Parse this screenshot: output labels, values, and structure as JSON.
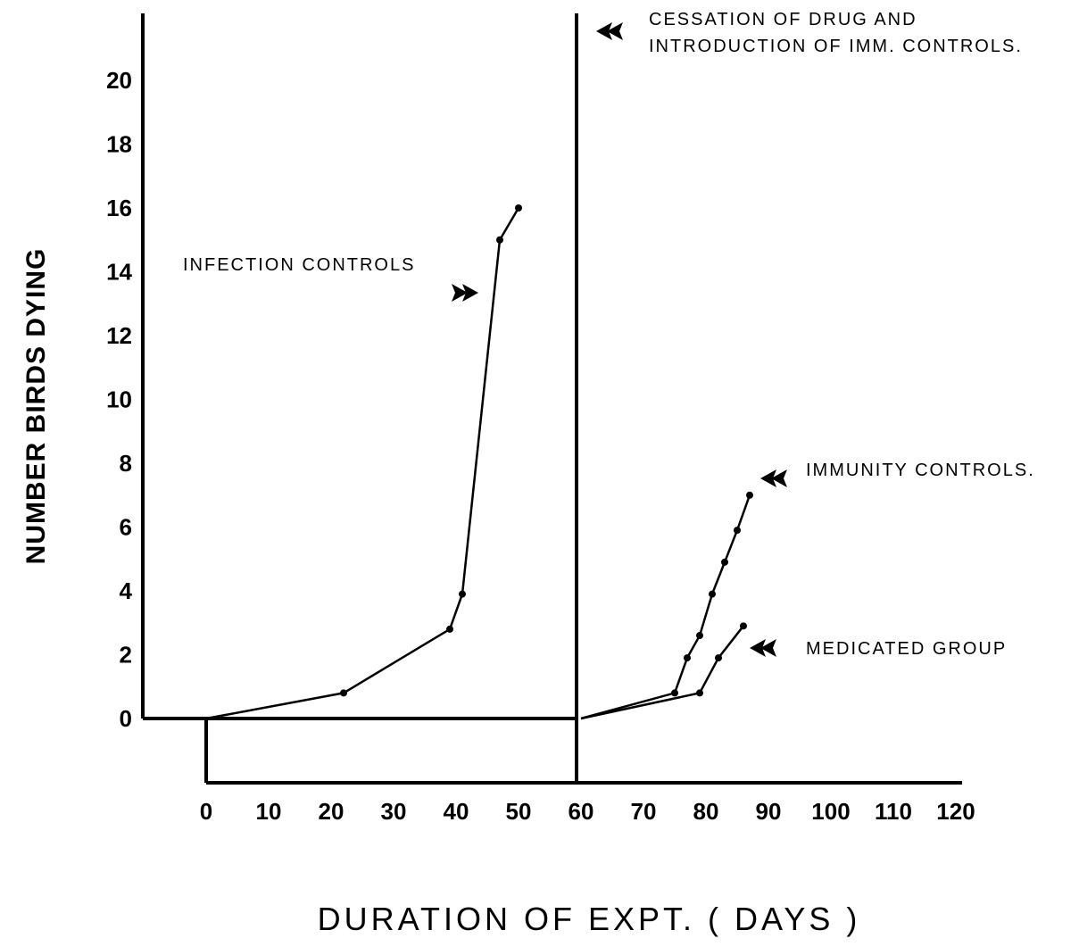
{
  "chart_data": {
    "type": "line",
    "title": "",
    "xlabel": "DURATION  OF  EXPT.  ( DAYS )",
    "ylabel": "NUMBER     BIRDS     DYING",
    "xlim": [
      0,
      120
    ],
    "ylim": [
      0,
      20
    ],
    "x_ticks": [
      "0",
      "10",
      "20",
      "30",
      "40",
      "50",
      "60",
      "70",
      "80",
      "90",
      "100",
      "110",
      "120"
    ],
    "y_ticks": [
      "0",
      "2",
      "4",
      "6",
      "8",
      "10",
      "12",
      "14",
      "16",
      "18",
      "20"
    ],
    "grid": false,
    "series": [
      {
        "name": "INFECTION CONTROLS",
        "points": [
          [
            0,
            0
          ],
          [
            22,
            0.8
          ],
          [
            39,
            2.8
          ],
          [
            41,
            3.9
          ],
          [
            47,
            15
          ],
          [
            50,
            16
          ]
        ]
      },
      {
        "name": "IMMUNITY CONTROLS.",
        "points": [
          [
            60,
            0
          ],
          [
            75,
            0.8
          ],
          [
            77,
            1.9
          ],
          [
            79,
            2.6
          ],
          [
            81,
            3.9
          ],
          [
            83,
            4.9
          ],
          [
            85,
            5.9
          ],
          [
            87,
            7
          ]
        ]
      },
      {
        "name": "MEDICATED GROUP",
        "points": [
          [
            60,
            0
          ],
          [
            79,
            0.8
          ],
          [
            82,
            1.9
          ],
          [
            86,
            2.9
          ]
        ]
      }
    ],
    "vertical_line": {
      "x": 60,
      "label_line1": "CESSATION  OF  DRUG  AND",
      "label_line2": "INTRODUCTION  OF  IMM. CONTROLS."
    }
  }
}
